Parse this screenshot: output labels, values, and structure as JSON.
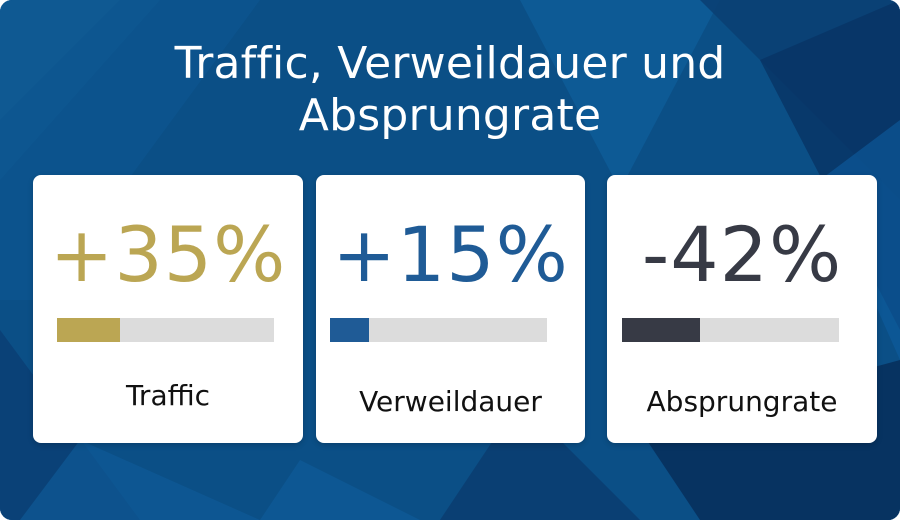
{
  "title": {
    "line1": "Traffic, Verweildauer und",
    "line2": "Absprungrate"
  },
  "colors": {
    "background": "#0b4f86",
    "track": "#dcdcdc"
  },
  "cards": [
    {
      "value": "+35%",
      "label": "Traffic",
      "color": "#bba653",
      "fill_fraction": 0.29
    },
    {
      "value": "+15%",
      "label": "Verweildauer",
      "color": "#1f5b96",
      "fill_fraction": 0.18
    },
    {
      "value": "-42%",
      "label": "Absprungrate",
      "color": "#373a45",
      "fill_fraction": 0.36
    }
  ]
}
